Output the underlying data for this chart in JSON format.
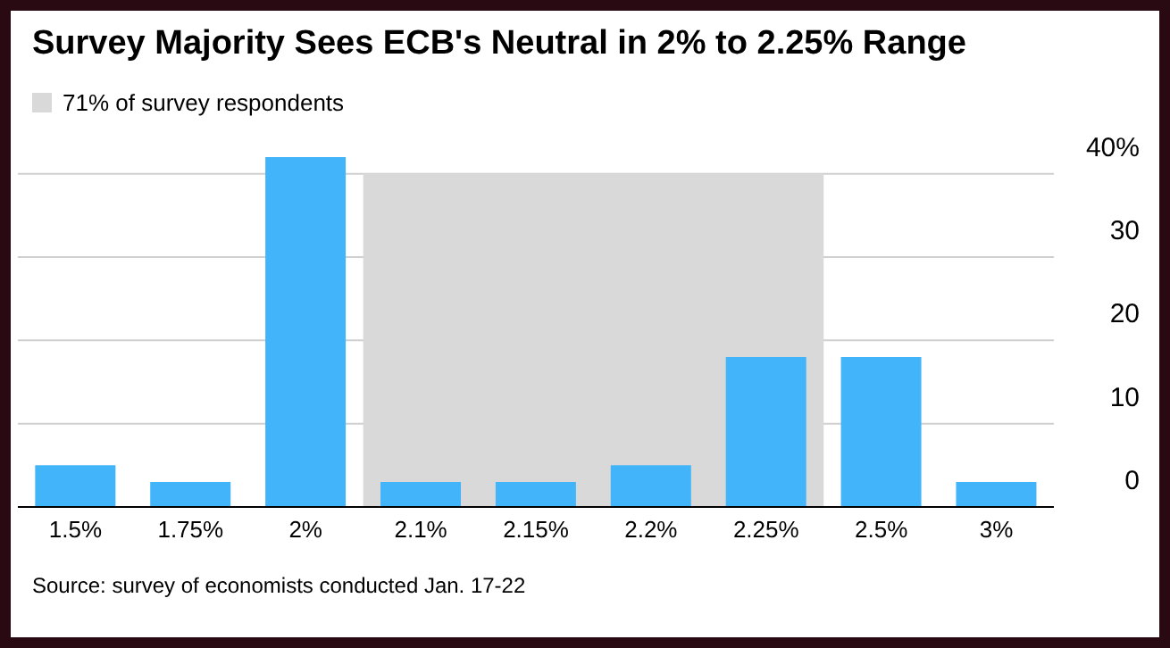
{
  "chart_data": {
    "type": "bar",
    "title": "Survey Majority Sees ECB's Neutral in 2% to 2.25% Range",
    "categories": [
      "1.5%",
      "1.75%",
      "2%",
      "2.1%",
      "2.15%",
      "2.2%",
      "2.25%",
      "2.5%",
      "3%"
    ],
    "values": [
      5,
      3,
      42,
      3,
      3,
      5,
      18,
      18,
      3
    ],
    "color": "#42b4f9",
    "ylim": [
      0,
      42
    ],
    "yticks": [
      0,
      10,
      20,
      30,
      {
        "value": 40,
        "label": "40%"
      }
    ],
    "grid": "y",
    "bands": [
      {
        "axis": "x",
        "from": "2.1%",
        "to": "2.25%",
        "label": "71% of survey respondents",
        "color": "#d9d9d9"
      }
    ],
    "legend": "top left",
    "annotations": [
      "Source: survey of economists conducted Jan. 17-22"
    ]
  }
}
